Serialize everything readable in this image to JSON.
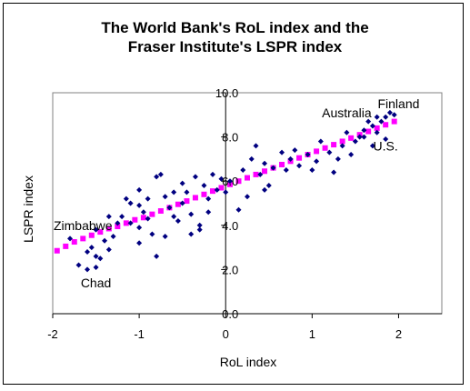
{
  "chart_data": {
    "type": "scatter",
    "title_lines": [
      "The World Bank's RoL index and the",
      "Fraser Institute's LSPR index"
    ],
    "xlabel": "RoL index",
    "ylabel": "LSPR index",
    "xlim": [
      -2,
      2.5
    ],
    "ylim": [
      0,
      10
    ],
    "x_ticks": [
      -2,
      -1,
      0,
      1,
      2
    ],
    "x_tick_labels": [
      "-2",
      "-1",
      "0",
      "1",
      "2"
    ],
    "y_ticks": [
      0,
      2,
      4,
      6,
      8,
      10
    ],
    "y_tick_labels": [
      "0.0",
      "2.0",
      "4.0",
      "6.0",
      "8.0",
      "10.0"
    ],
    "grid": false,
    "axes_cross_at": [
      0,
      0
    ],
    "series": [
      {
        "role": "countries",
        "color": "#000080",
        "marker": "diamond",
        "points": [
          [
            -1.7,
            2.2
          ],
          [
            -1.6,
            2.0
          ],
          [
            -1.5,
            2.1
          ],
          [
            -1.45,
            2.5
          ],
          [
            -1.8,
            3.4
          ],
          [
            -1.6,
            2.8
          ],
          [
            -1.55,
            3.0
          ],
          [
            -1.4,
            3.3
          ],
          [
            -1.5,
            3.8
          ],
          [
            -1.35,
            4.4
          ],
          [
            -1.2,
            4.4
          ],
          [
            -1.0,
            4.9
          ],
          [
            -1.1,
            5.0
          ],
          [
            -0.9,
            5.2
          ],
          [
            -0.8,
            6.2
          ],
          [
            -0.75,
            6.3
          ],
          [
            -0.6,
            5.5
          ],
          [
            -0.5,
            5.0
          ],
          [
            -0.4,
            4.5
          ],
          [
            -0.3,
            3.8
          ],
          [
            -0.25,
            5.8
          ],
          [
            -0.35,
            6.2
          ],
          [
            -0.9,
            4.3
          ],
          [
            -1.0,
            3.9
          ],
          [
            -0.85,
            3.6
          ],
          [
            -0.7,
            3.5
          ],
          [
            -0.8,
            2.6
          ],
          [
            -1.0,
            3.2
          ],
          [
            -1.15,
            5.2
          ],
          [
            -1.0,
            5.6
          ],
          [
            -1.25,
            4.1
          ],
          [
            -0.65,
            4.8
          ],
          [
            -0.55,
            4.2
          ],
          [
            -0.45,
            5.5
          ],
          [
            -0.3,
            4.0
          ],
          [
            -0.2,
            5.2
          ],
          [
            -0.1,
            5.6
          ],
          [
            0.05,
            6.0
          ],
          [
            0.2,
            6.5
          ],
          [
            0.35,
            7.6
          ],
          [
            0.3,
            7.0
          ],
          [
            0.45,
            6.8
          ],
          [
            0.55,
            6.6
          ],
          [
            0.5,
            5.8
          ],
          [
            0.65,
            7.3
          ],
          [
            0.7,
            6.5
          ],
          [
            0.75,
            7.0
          ],
          [
            0.85,
            6.7
          ],
          [
            0.95,
            7.2
          ],
          [
            1.05,
            6.9
          ],
          [
            1.2,
            7.3
          ],
          [
            1.3,
            7.0
          ],
          [
            1.35,
            7.6
          ],
          [
            1.4,
            8.2
          ],
          [
            1.55,
            8.0
          ],
          [
            1.6,
            8.3
          ],
          [
            1.7,
            8.5
          ],
          [
            1.75,
            8.2
          ],
          [
            1.8,
            8.7
          ],
          [
            1.85,
            8.9
          ],
          [
            1.9,
            9.1
          ],
          [
            1.95,
            9.0
          ],
          [
            1.85,
            7.9
          ],
          [
            1.7,
            7.6
          ],
          [
            1.6,
            8.0
          ],
          [
            -0.15,
            6.3
          ],
          [
            0.0,
            5.5
          ],
          [
            -0.05,
            6.1
          ],
          [
            0.15,
            4.7
          ],
          [
            0.45,
            5.6
          ],
          [
            -1.5,
            2.6
          ],
          [
            -1.3,
            3.5
          ],
          [
            -0.95,
            4.6
          ],
          [
            -0.6,
            4.4
          ],
          [
            -0.4,
            3.6
          ],
          [
            -0.2,
            4.6
          ],
          [
            1.0,
            6.5
          ],
          [
            1.1,
            7.8
          ],
          [
            1.25,
            6.4
          ],
          [
            1.45,
            7.2
          ],
          [
            -0.5,
            5.9
          ],
          [
            -0.7,
            5.3
          ],
          [
            -1.1,
            4.1
          ],
          [
            -1.35,
            2.9
          ],
          [
            0.25,
            5.3
          ],
          [
            0.4,
            6.3
          ],
          [
            0.8,
            7.4
          ],
          [
            1.5,
            7.8
          ],
          [
            1.65,
            8.7
          ],
          [
            1.75,
            8.9
          ]
        ]
      },
      {
        "role": "trend",
        "color": "#ff00ff",
        "marker": "square",
        "points": [
          [
            -1.95,
            2.85
          ],
          [
            -1.85,
            3.05
          ],
          [
            -1.75,
            3.25
          ],
          [
            -1.65,
            3.4
          ],
          [
            -1.55,
            3.55
          ],
          [
            -1.45,
            3.7
          ],
          [
            -1.35,
            3.85
          ],
          [
            -1.25,
            3.95
          ],
          [
            -1.15,
            4.1
          ],
          [
            -1.05,
            4.25
          ],
          [
            -0.95,
            4.35
          ],
          [
            -0.85,
            4.5
          ],
          [
            -0.75,
            4.65
          ],
          [
            -0.65,
            4.8
          ],
          [
            -0.55,
            4.95
          ],
          [
            -0.45,
            5.1
          ],
          [
            -0.35,
            5.25
          ],
          [
            -0.25,
            5.4
          ],
          [
            -0.15,
            5.55
          ],
          [
            -0.05,
            5.7
          ],
          [
            0.05,
            5.85
          ],
          [
            0.15,
            6.0
          ],
          [
            0.25,
            6.15
          ],
          [
            0.35,
            6.3
          ],
          [
            0.45,
            6.45
          ],
          [
            0.55,
            6.6
          ],
          [
            0.65,
            6.75
          ],
          [
            0.75,
            6.9
          ],
          [
            0.85,
            7.05
          ],
          [
            0.95,
            7.2
          ],
          [
            1.05,
            7.35
          ],
          [
            1.15,
            7.5
          ],
          [
            1.25,
            7.65
          ],
          [
            1.35,
            7.8
          ],
          [
            1.45,
            7.95
          ],
          [
            1.55,
            8.1
          ],
          [
            1.65,
            8.25
          ],
          [
            1.75,
            8.4
          ],
          [
            1.85,
            8.55
          ],
          [
            1.95,
            8.7
          ]
        ]
      }
    ],
    "annotations": [
      {
        "text": "Zimbabwe",
        "x": -1.65,
        "y": 4.0
      },
      {
        "text": "Chad",
        "x": -1.5,
        "y": 1.4
      },
      {
        "text": "Australia",
        "x": 1.4,
        "y": 9.1
      },
      {
        "text": "Finland",
        "x": 2.0,
        "y": 9.5
      },
      {
        "text": "U.S.",
        "x": 1.85,
        "y": 7.6
      }
    ]
  }
}
